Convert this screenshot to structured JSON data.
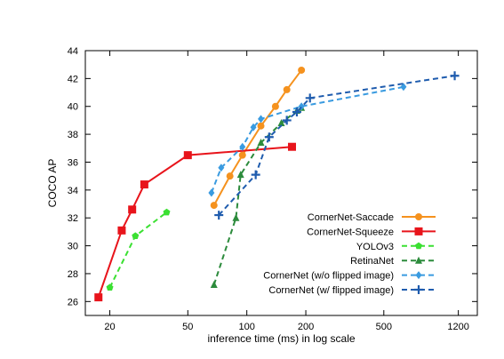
{
  "chart_data": {
    "type": "line",
    "title": "",
    "xlabel": "inference time (ms) in log scale",
    "ylabel": "COCO AP",
    "xscale": "log",
    "xlim": [
      15,
      1500
    ],
    "ylim": [
      25,
      44
    ],
    "xticks": [
      20,
      50,
      100,
      200,
      500,
      1200
    ],
    "yticks": [
      26,
      28,
      30,
      32,
      34,
      36,
      38,
      40,
      42,
      44
    ],
    "grid": false,
    "legend_position": "bottom-right",
    "series": [
      {
        "name": "CornerNet-Saccade",
        "color": "#f5921e",
        "dash": "solid",
        "marker": "circle",
        "points": [
          [
            68,
            32.9
          ],
          [
            82,
            35.0
          ],
          [
            95,
            36.5
          ],
          [
            118,
            38.6
          ],
          [
            140,
            40.0
          ],
          [
            160,
            41.2
          ],
          [
            190,
            42.6
          ]
        ]
      },
      {
        "name": "CornerNet-Squeeze",
        "color": "#e8141b",
        "dash": "solid",
        "marker": "square",
        "points": [
          [
            17.5,
            26.3
          ],
          [
            23,
            31.1
          ],
          [
            26,
            32.6
          ],
          [
            30,
            34.4
          ],
          [
            50,
            36.5
          ],
          [
            170,
            37.1
          ]
        ]
      },
      {
        "name": "YOLOv3",
        "color": "#3be032",
        "dash": "dashed",
        "marker": "pentagon",
        "points": [
          [
            20,
            27.0
          ],
          [
            27,
            30.7
          ],
          [
            39,
            32.4
          ]
        ]
      },
      {
        "name": "RetinaNet",
        "color": "#2c8b3c",
        "dash": "dashed",
        "marker": "triangle",
        "points": [
          [
            68,
            27.2
          ],
          [
            88,
            32.0
          ],
          [
            93,
            35.1
          ],
          [
            118,
            37.4
          ],
          [
            150,
            38.8
          ],
          [
            180,
            39.7
          ],
          [
            190,
            39.9
          ]
        ]
      },
      {
        "name": "CornerNet (w/o flipped image)",
        "color": "#3a9be0",
        "dash": "dashed",
        "marker": "diamond",
        "points": [
          [
            66,
            33.8
          ],
          [
            74,
            35.6
          ],
          [
            95,
            37.1
          ],
          [
            108,
            38.5
          ],
          [
            118,
            39.1
          ],
          [
            190,
            40.0
          ],
          [
            630,
            41.4
          ]
        ]
      },
      {
        "name": "CornerNet (w/ flipped image)",
        "color": "#1f5cae",
        "dash": "dashed",
        "marker": "plus",
        "points": [
          [
            72,
            32.2
          ],
          [
            111,
            35.1
          ],
          [
            130,
            37.8
          ],
          [
            160,
            39.0
          ],
          [
            180,
            39.6
          ],
          [
            210,
            40.6
          ],
          [
            1150,
            42.2
          ]
        ]
      }
    ]
  }
}
